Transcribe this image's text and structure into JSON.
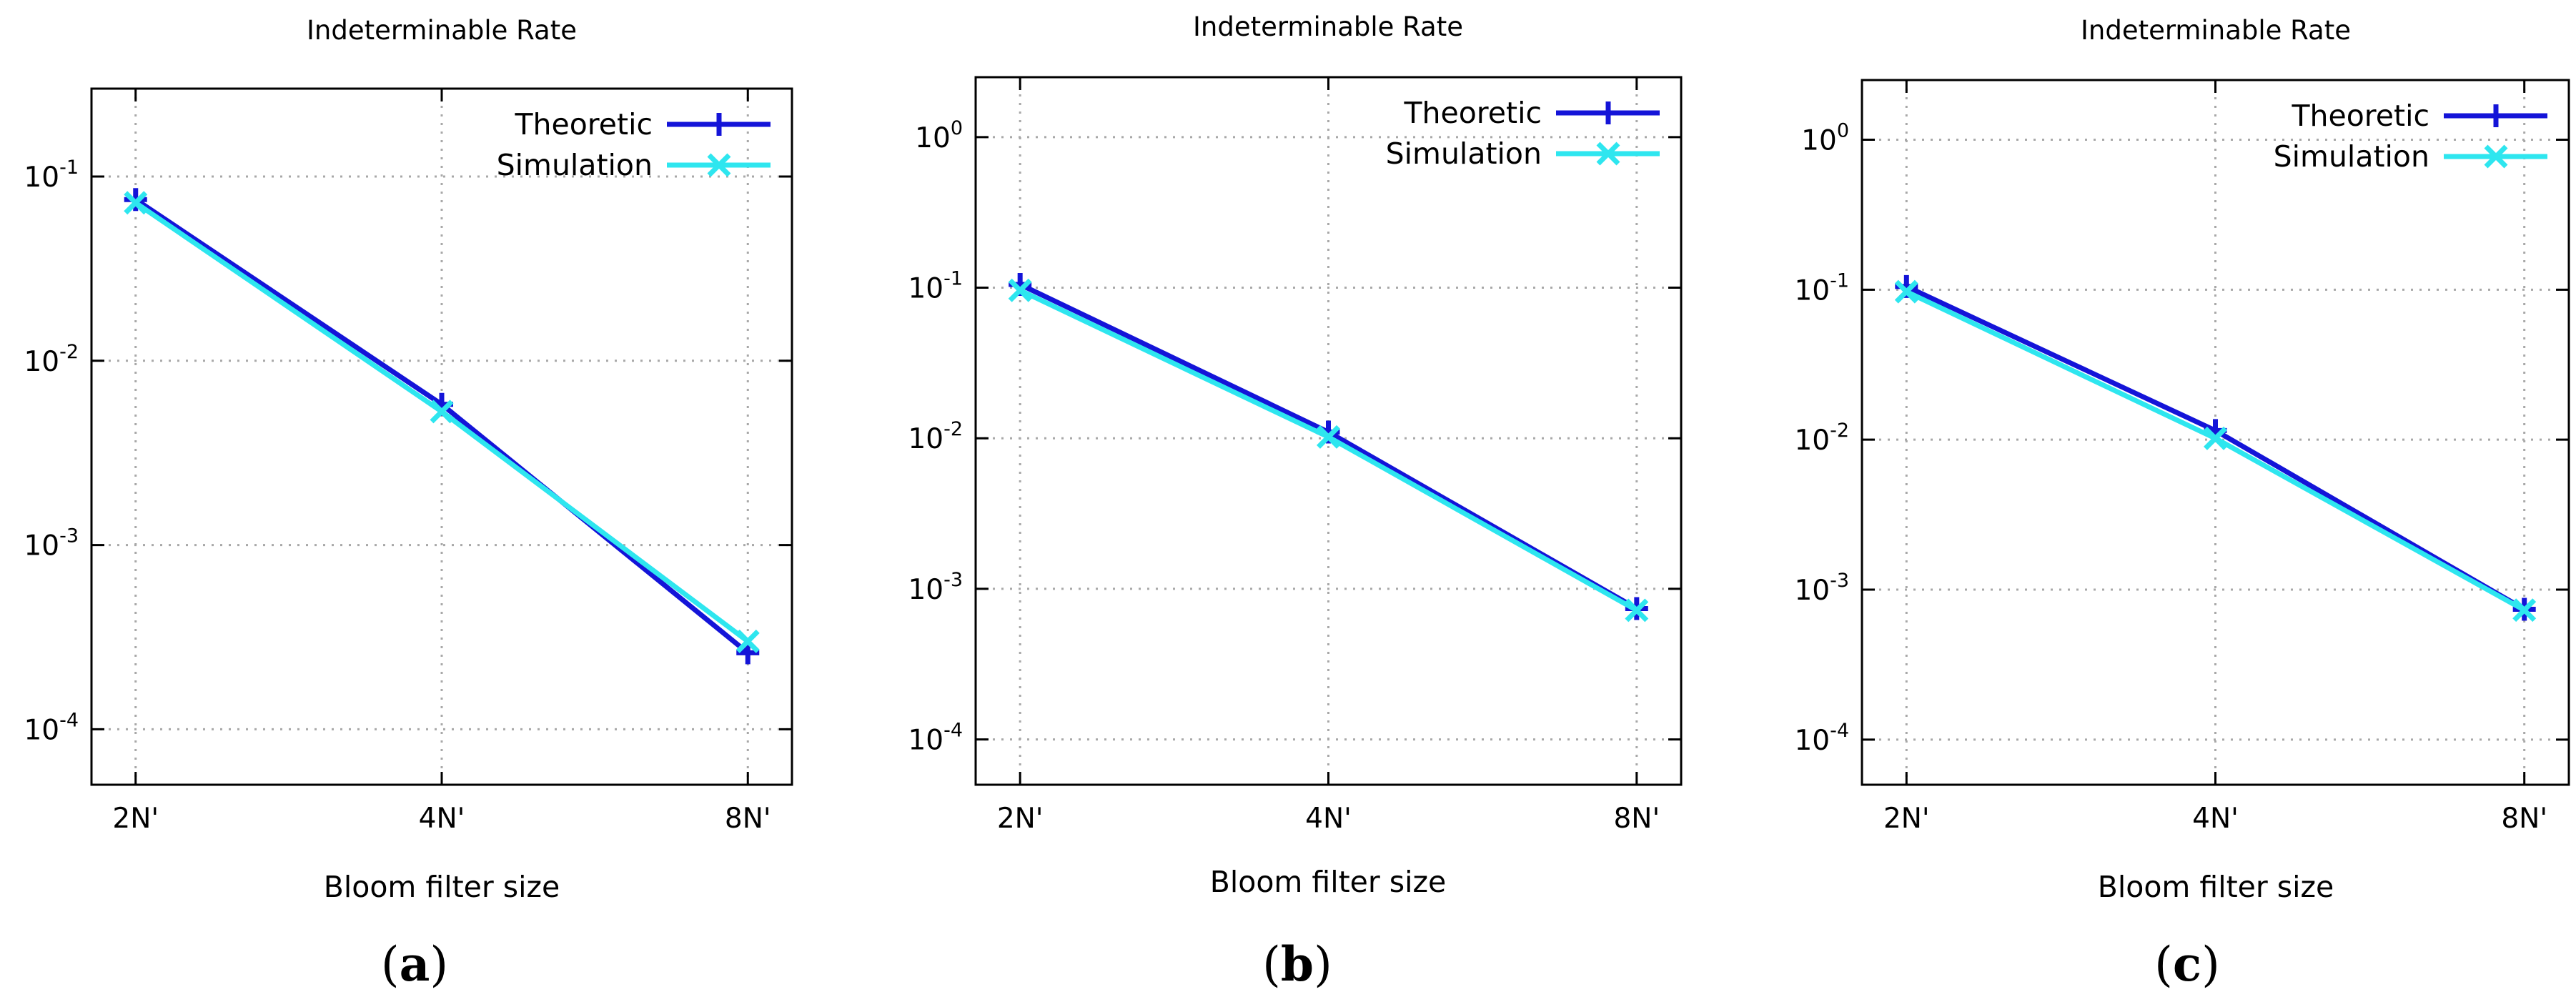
{
  "colors": {
    "theoretic": "#1414d8",
    "simulation": "#2ee6ef"
  },
  "chart_data": [
    {
      "type": "line",
      "title": "Indeterminable Rate",
      "xlabel": "Bloom filter size",
      "ylabel": "",
      "yscale": "log",
      "ylim": [
        5e-05,
        0.3
      ],
      "categories": [
        "2N'",
        "4N'",
        "8N'"
      ],
      "yticks": [
        {
          "base": "10",
          "exp": "-1"
        },
        {
          "base": "10",
          "exp": "-2"
        },
        {
          "base": "10",
          "exp": "-3"
        },
        {
          "base": "10",
          "exp": "-4"
        }
      ],
      "ytick_values": [
        0.1,
        0.01,
        0.001,
        0.0001
      ],
      "legend_position": "top-right",
      "series": [
        {
          "name": "Theoretic",
          "marker": "plus",
          "values": [
            0.075,
            0.0058,
            0.00026
          ]
        },
        {
          "name": "Simulation",
          "marker": "x",
          "values": [
            0.072,
            0.0053,
            0.0003
          ]
        }
      ],
      "caption": "a"
    },
    {
      "type": "line",
      "title": "Indeterminable Rate",
      "xlabel": "Bloom filter size",
      "ylabel": "",
      "yscale": "log",
      "ylim": [
        5e-05,
        2.5
      ],
      "categories": [
        "2N'",
        "4N'",
        "8N'"
      ],
      "yticks": [
        {
          "base": "10",
          "exp": "0"
        },
        {
          "base": "10",
          "exp": "-1"
        },
        {
          "base": "10",
          "exp": "-2"
        },
        {
          "base": "10",
          "exp": "-3"
        },
        {
          "base": "10",
          "exp": "-4"
        }
      ],
      "ytick_values": [
        1,
        0.1,
        0.01,
        0.001,
        0.0001
      ],
      "legend_position": "top-right",
      "series": [
        {
          "name": "Theoretic",
          "marker": "plus",
          "values": [
            0.105,
            0.011,
            0.00074
          ]
        },
        {
          "name": "Simulation",
          "marker": "x",
          "values": [
            0.096,
            0.0102,
            0.00072
          ]
        }
      ],
      "caption": "b"
    },
    {
      "type": "line",
      "title": "Indeterminable Rate",
      "xlabel": "Bloom filter size",
      "ylabel": "",
      "yscale": "log",
      "ylim": [
        5e-05,
        2.5
      ],
      "categories": [
        "2N'",
        "4N'",
        "8N'"
      ],
      "yticks": [
        {
          "base": "10",
          "exp": "0"
        },
        {
          "base": "10",
          "exp": "-1"
        },
        {
          "base": "10",
          "exp": "-2"
        },
        {
          "base": "10",
          "exp": "-3"
        },
        {
          "base": "10",
          "exp": "-4"
        }
      ],
      "ytick_values": [
        1,
        0.1,
        0.01,
        0.001,
        0.0001
      ],
      "legend_position": "top-right",
      "series": [
        {
          "name": "Theoretic",
          "marker": "plus",
          "values": [
            0.105,
            0.0115,
            0.00074
          ]
        },
        {
          "name": "Simulation",
          "marker": "x",
          "values": [
            0.097,
            0.0102,
            0.00073
          ]
        }
      ],
      "caption": "c"
    }
  ]
}
